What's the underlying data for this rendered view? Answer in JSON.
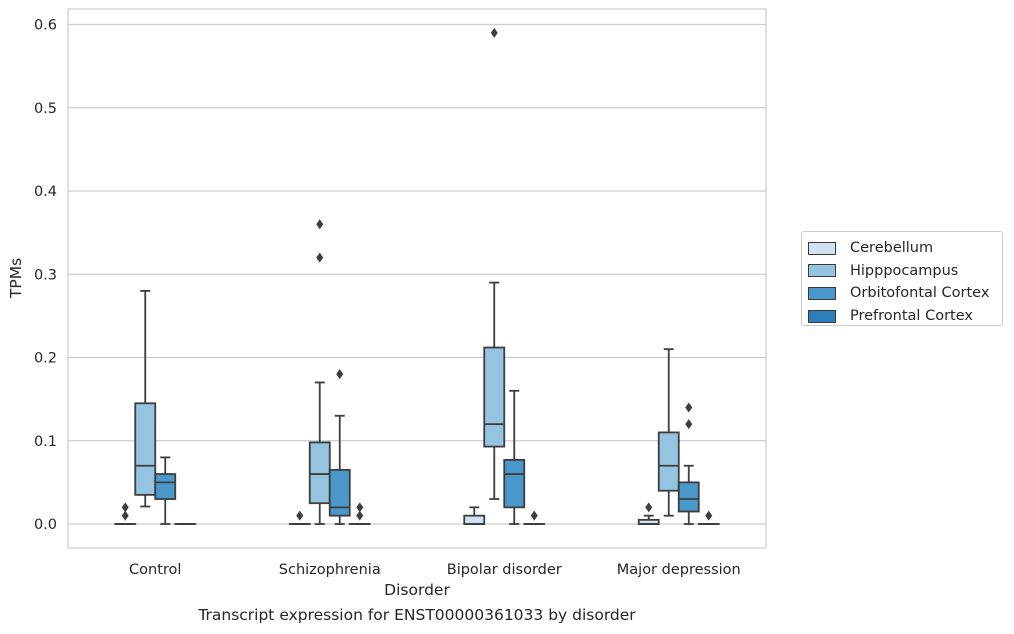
{
  "chart_data": {
    "type": "box",
    "title": "",
    "caption": "Transcript expression for ENST00000361033 by disorder",
    "xlabel": "Disorder",
    "ylabel": "TPMs",
    "ylim": [
      -0.028,
      0.62
    ],
    "yticks": [
      0.0,
      0.1,
      0.2,
      0.3,
      0.4,
      0.5,
      0.6
    ],
    "ytick_labels": [
      "0.0",
      "0.1",
      "0.2",
      "0.3",
      "0.4",
      "0.5",
      "0.6"
    ],
    "grid": "horizontal",
    "legend_position": "right",
    "categories": [
      "Control",
      "Schizophrenia",
      "Bipolar disorder",
      "Major depression"
    ],
    "series": [
      {
        "name": "Cerebellum",
        "color": "#d0e1f2",
        "boxes": [
          {
            "whisker_low": 0.0,
            "q1": 0.0,
            "median": 0.0,
            "q3": 0.0,
            "whisker_high": 0.0,
            "outliers": [
              0.01,
              0.02
            ]
          },
          {
            "whisker_low": 0.0,
            "q1": 0.0,
            "median": 0.0,
            "q3": 0.0,
            "whisker_high": 0.0,
            "outliers": [
              0.01
            ]
          },
          {
            "whisker_low": 0.0,
            "q1": 0.0,
            "median": 0.0,
            "q3": 0.01,
            "whisker_high": 0.02,
            "outliers": []
          },
          {
            "whisker_low": 0.0,
            "q1": 0.0,
            "median": 0.0,
            "q3": 0.005,
            "whisker_high": 0.01,
            "outliers": [
              0.02
            ]
          }
        ]
      },
      {
        "name": "Hipppocampus",
        "color": "#94c4df",
        "boxes": [
          {
            "whisker_low": 0.021,
            "q1": 0.035,
            "median": 0.07,
            "q3": 0.145,
            "whisker_high": 0.28,
            "outliers": []
          },
          {
            "whisker_low": 0.0,
            "q1": 0.025,
            "median": 0.06,
            "q3": 0.098,
            "whisker_high": 0.17,
            "outliers": [
              0.32,
              0.36
            ]
          },
          {
            "whisker_low": 0.03,
            "q1": 0.093,
            "median": 0.12,
            "q3": 0.212,
            "whisker_high": 0.29,
            "outliers": [
              0.59
            ]
          },
          {
            "whisker_low": 0.01,
            "q1": 0.04,
            "median": 0.07,
            "q3": 0.11,
            "whisker_high": 0.21,
            "outliers": []
          }
        ]
      },
      {
        "name": "Orbitofontal Cortex",
        "color": "#4a98c9",
        "boxes": [
          {
            "whisker_low": 0.0,
            "q1": 0.03,
            "median": 0.05,
            "q3": 0.06,
            "whisker_high": 0.08,
            "outliers": []
          },
          {
            "whisker_low": 0.0,
            "q1": 0.01,
            "median": 0.02,
            "q3": 0.065,
            "whisker_high": 0.13,
            "outliers": [
              0.18
            ]
          },
          {
            "whisker_low": 0.0,
            "q1": 0.02,
            "median": 0.06,
            "q3": 0.077,
            "whisker_high": 0.16,
            "outliers": []
          },
          {
            "whisker_low": 0.0,
            "q1": 0.015,
            "median": 0.03,
            "q3": 0.05,
            "whisker_high": 0.07,
            "outliers": [
              0.12,
              0.14
            ]
          }
        ]
      },
      {
        "name": "Prefrontal Cortex",
        "color": "#2e7ebc",
        "boxes": [
          {
            "whisker_low": 0.0,
            "q1": 0.0,
            "median": 0.0,
            "q3": 0.0,
            "whisker_high": 0.0,
            "outliers": []
          },
          {
            "whisker_low": 0.0,
            "q1": 0.0,
            "median": 0.0,
            "q3": 0.0,
            "whisker_high": 0.0,
            "outliers": [
              0.01,
              0.02
            ]
          },
          {
            "whisker_low": 0.0,
            "q1": 0.0,
            "median": 0.0,
            "q3": 0.0,
            "whisker_high": 0.0,
            "outliers": [
              0.01
            ]
          },
          {
            "whisker_low": 0.0,
            "q1": 0.0,
            "median": 0.0,
            "q3": 0.0,
            "whisker_high": 0.0,
            "outliers": [
              0.01
            ]
          }
        ]
      }
    ]
  }
}
